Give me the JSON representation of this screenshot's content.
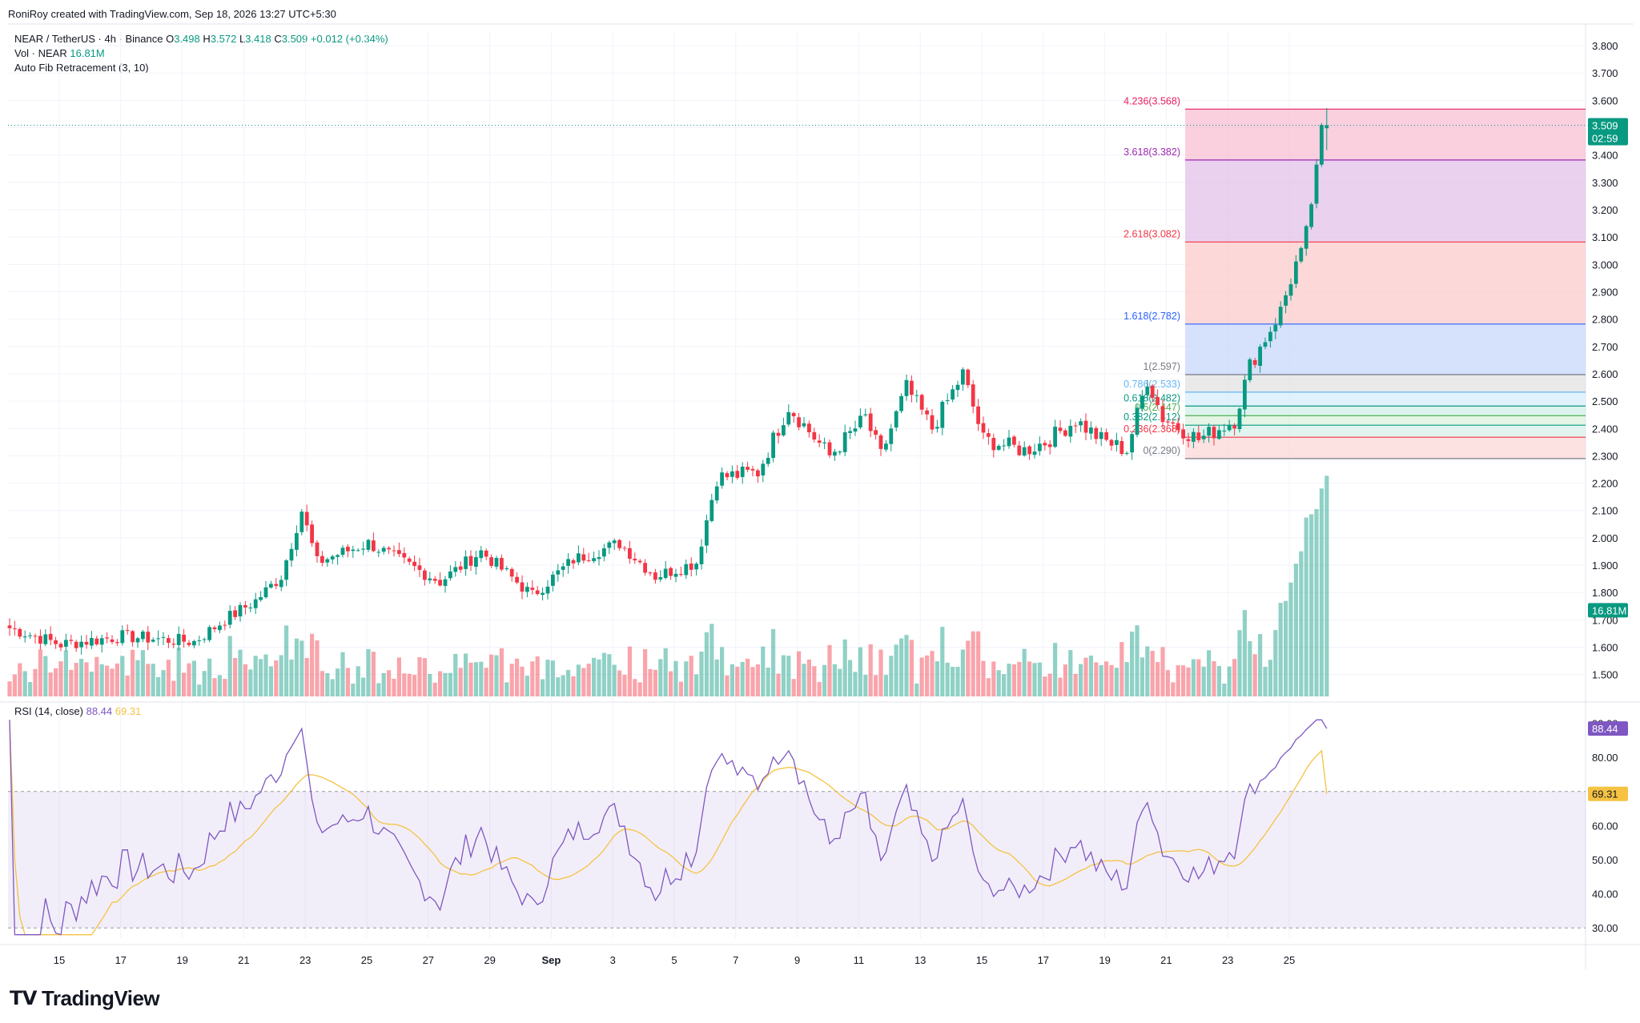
{
  "header": {
    "credit": "RoniRoy created with TradingView.com, Sep 18, 2026 13:27 UTC+5:30"
  },
  "legend": {
    "symbol": "NEAR / TetherUS · 4h · Binance",
    "o_label": "O",
    "o": "3.498",
    "h_label": "H",
    "h": "3.572",
    "l_label": "L",
    "l": "3.418",
    "c_label": "C",
    "c": "3.509",
    "change": "+0.012 (+0.34%)",
    "vol_label": "Vol · NEAR",
    "vol_value": "16.81M",
    "fib_label": "Auto Fib Retracement (3, 10)"
  },
  "rsi_legend": {
    "label": "RSI (14, close)",
    "rsi": "88.44",
    "ma": "69.31"
  },
  "footer": {
    "brand": "TradingView"
  },
  "colors": {
    "up": "#089981",
    "down": "#f23645",
    "rsi_line": "#7e57c2",
    "rsi_ma": "#f5c242",
    "last_price_bg": "#089981",
    "volume_badge_bg": "#089981"
  },
  "axis": {
    "price_ticks": [
      "3.800",
      "3.700",
      "3.600",
      "3.500",
      "3.400",
      "3.300",
      "3.200",
      "3.100",
      "3.000",
      "2.900",
      "2.800",
      "2.700",
      "2.600",
      "2.500",
      "2.400",
      "2.300",
      "2.200",
      "2.100",
      "2.000",
      "1.900",
      "1.800",
      "1.700",
      "1.600",
      "1.500"
    ],
    "rsi_ticks": [
      "90.00",
      "80.00",
      "70.00",
      "60.00",
      "50.00",
      "40.00",
      "30.00"
    ],
    "x_ticks": [
      "15",
      "17",
      "19",
      "21",
      "23",
      "25",
      "27",
      "29",
      "Sep",
      "3",
      "5",
      "7",
      "9",
      "11",
      "13",
      "15",
      "17",
      "19",
      "21",
      "23",
      "25"
    ],
    "last_price": "3.509",
    "countdown": "02:59",
    "volume_badge": "16.81M",
    "rsi_badge": "88.44",
    "rsi_ma_badge": "69.31"
  },
  "chart_data": {
    "type": "candlestick",
    "timeframe": "4h",
    "price_range": [
      1.42,
      3.85
    ],
    "rsi_range": [
      27,
      92
    ],
    "rsi_bands": [
      30,
      70
    ],
    "fib_levels": [
      {
        "label": "4.236(3.568)",
        "ratio": 4.236,
        "price": 3.568,
        "color": "#e91e63",
        "fill": "#f8bbd0"
      },
      {
        "label": "3.618(3.382)",
        "ratio": 3.618,
        "price": 3.382,
        "color": "#9c27b0",
        "fill": "#e1bee7"
      },
      {
        "label": "2.618(3.082)",
        "ratio": 2.618,
        "price": 3.082,
        "color": "#f23645",
        "fill": "#fcc8c8"
      },
      {
        "label": "1.618(2.782)",
        "ratio": 1.618,
        "price": 2.782,
        "color": "#2962ff",
        "fill": "#c5d4fb"
      },
      {
        "label": "1(2.597)",
        "ratio": 1,
        "price": 2.597,
        "color": "#787b86",
        "fill": "#e0e0e0"
      },
      {
        "label": "0.786(2.533)",
        "ratio": 0.786,
        "price": 2.533,
        "color": "#64b5f6",
        "fill": "#d6ecfb"
      },
      {
        "label": "0.618(2.482)",
        "ratio": 0.618,
        "price": 2.482,
        "color": "#089981",
        "fill": "#cfeee5"
      },
      {
        "label": "0.5(2.447)",
        "ratio": 0.5,
        "price": 2.447,
        "color": "#4caf50",
        "fill": "#d9f0da"
      },
      {
        "label": "0.382(2.412)",
        "ratio": 0.382,
        "price": 2.412,
        "color": "#089981",
        "fill": "#d6efe8"
      },
      {
        "label": "0.236(2.368)",
        "ratio": 0.236,
        "price": 2.368,
        "color": "#f23645",
        "fill": "#fcd5d5"
      },
      {
        "label": "0(2.290)",
        "ratio": 0,
        "price": 2.29,
        "color": "#787b86",
        "fill": "#f6f6f6"
      }
    ],
    "anchors": [
      {
        "t": 0,
        "p": 1.67
      },
      {
        "t": 10,
        "p": 1.61
      },
      {
        "t": 22,
        "p": 1.64
      },
      {
        "t": 36,
        "p": 1.62
      },
      {
        "t": 42,
        "p": 1.7
      },
      {
        "t": 48,
        "p": 1.77
      },
      {
        "t": 53,
        "p": 1.86
      },
      {
        "t": 57,
        "p": 2.1
      },
      {
        "t": 60,
        "p": 1.91
      },
      {
        "t": 64,
        "p": 1.94
      },
      {
        "t": 70,
        "p": 1.98
      },
      {
        "t": 84,
        "p": 1.84
      },
      {
        "t": 92,
        "p": 1.95
      },
      {
        "t": 102,
        "p": 1.79
      },
      {
        "t": 110,
        "p": 1.92
      },
      {
        "t": 119,
        "p": 1.98
      },
      {
        "t": 126,
        "p": 1.86
      },
      {
        "t": 134,
        "p": 1.91
      },
      {
        "t": 138,
        "p": 2.22
      },
      {
        "t": 146,
        "p": 2.24
      },
      {
        "t": 152,
        "p": 2.48
      },
      {
        "t": 160,
        "p": 2.3
      },
      {
        "t": 167,
        "p": 2.44
      },
      {
        "t": 170,
        "p": 2.3
      },
      {
        "t": 175,
        "p": 2.55
      },
      {
        "t": 180,
        "p": 2.4
      },
      {
        "t": 186,
        "p": 2.6
      },
      {
        "t": 190,
        "p": 2.36
      },
      {
        "t": 198,
        "p": 2.32
      },
      {
        "t": 202,
        "p": 2.35
      },
      {
        "t": 208,
        "p": 2.43
      },
      {
        "t": 213,
        "p": 2.36
      },
      {
        "t": 218,
        "p": 2.32
      },
      {
        "t": 222,
        "p": 2.58
      },
      {
        "t": 225,
        "p": 2.44
      },
      {
        "t": 232,
        "p": 2.36
      },
      {
        "t": 239,
        "p": 2.43
      },
      {
        "t": 242,
        "p": 2.63
      },
      {
        "t": 248,
        "p": 2.83
      },
      {
        "t": 252,
        "p": 3.06
      },
      {
        "t": 254,
        "p": 3.22
      },
      {
        "t": 256,
        "p": 3.51
      },
      {
        "t": 257,
        "p": 3.509
      }
    ],
    "last": {
      "open": 3.498,
      "high": 3.572,
      "low": 3.418,
      "close": 3.509,
      "volume": "16.81M",
      "rsi": 88.44,
      "rsi_ma": 69.31
    }
  }
}
